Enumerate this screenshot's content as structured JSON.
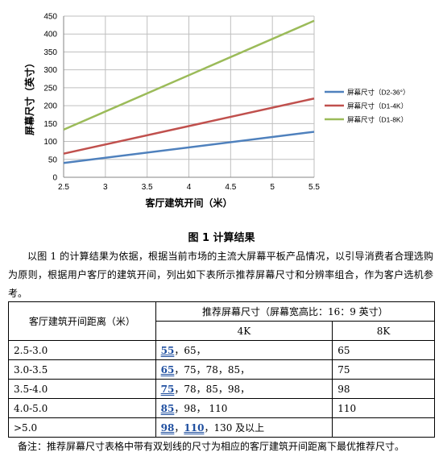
{
  "chart_data": {
    "type": "line",
    "title": "",
    "xlabel": "客厅建筑开间（米）",
    "ylabel": "屏幕尺寸（英寸）",
    "xlim": [
      2.5,
      5.5
    ],
    "ylim": [
      0,
      450
    ],
    "x_ticks": [
      "2.5",
      "3",
      "3.5",
      "4",
      "4.5",
      "5",
      "5.5"
    ],
    "y_ticks": [
      "0",
      "50",
      "100",
      "150",
      "200",
      "250",
      "300",
      "350",
      "400",
      "450"
    ],
    "grid": true,
    "legend_position": "right",
    "series": [
      {
        "name": "屏幕尺寸（D2-36°）",
        "color": "#4f81bd",
        "x": [
          2.5,
          5.5
        ],
        "y": [
          40,
          127
        ]
      },
      {
        "name": "屏幕尺寸（D1-4K）",
        "color": "#c0504d",
        "x": [
          2.5,
          5.5
        ],
        "y": [
          66,
          220
        ]
      },
      {
        "name": "屏幕尺寸（D1-8K）",
        "color": "#9bbb59",
        "x": [
          2.5,
          5.5
        ],
        "y": [
          133,
          437
        ]
      }
    ]
  },
  "caption": "图 1  计算结果",
  "paragraph": "以图 1 的计算结果为依据，根据当前市场的主流大屏幕平板产品情况，以引导消费者合理选购为原则，根据用户客厅的建筑开间，列出如下表所示推荐屏幕尺寸和分辨率组合，作为客户选机参考。",
  "table": {
    "col1_header": "客厅建筑开间距离（米）",
    "col2_header": "推荐屏幕尺寸（屏幕宽高比：16：9 英寸）",
    "sub_4k": "4K",
    "sub_8k": "8K",
    "rows": [
      {
        "range": "2.5-3.0",
        "best": [
          "55"
        ],
        "rest": "，65，",
        "k8": "65"
      },
      {
        "range": "3.0-3.5",
        "best": [
          "65"
        ],
        "rest": "，75，78，85，",
        "k8": "75"
      },
      {
        "range": "3.5-4.0",
        "best": [
          "75"
        ],
        "rest": "，78，85，98，",
        "k8": "98"
      },
      {
        "range": "4.0-5.0",
        "best": [
          "85"
        ],
        "rest": "，98，  110",
        "k8": "110"
      },
      {
        "range": ">5.0",
        "best": [
          "98",
          "110"
        ],
        "rest": "，130 及以上",
        "k8": ""
      }
    ]
  },
  "note": "备注：推荐屏幕尺寸表格中带有双划线的尺寸为相应的客厅建筑开间距离下最优推荐尺寸。"
}
